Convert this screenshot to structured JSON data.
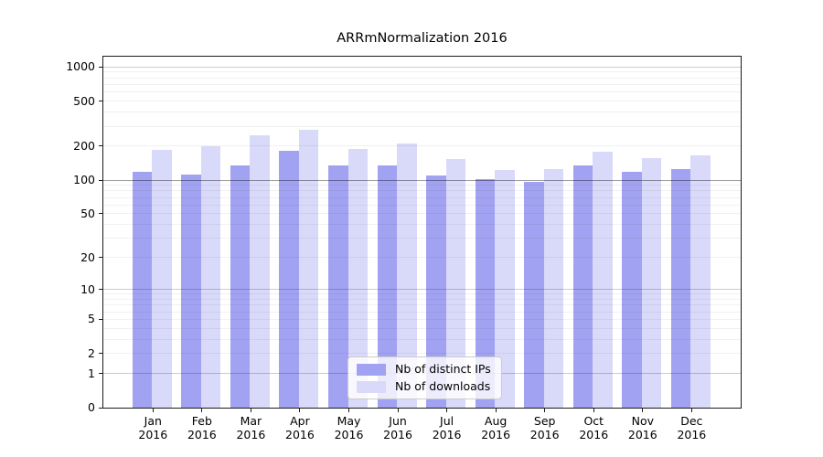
{
  "chart_data": {
    "type": "bar",
    "title": "ARRmNormalization 2016",
    "categories": [
      "Jan 2016",
      "Feb 2016",
      "Mar 2016",
      "Apr 2016",
      "May 2016",
      "Jun 2016",
      "Jul 2016",
      "Aug 2016",
      "Sep 2016",
      "Oct 2016",
      "Nov 2016",
      "Dec 2016"
    ],
    "series": [
      {
        "name": "Nb of distinct IPs",
        "color": "#a2a2f2",
        "values": [
          119,
          111,
          135,
          183,
          134,
          135,
          110,
          102,
          96,
          136,
          118,
          125
        ]
      },
      {
        "name": "Nb of downloads",
        "color": "#d9d9f9",
        "values": [
          186,
          201,
          250,
          280,
          190,
          211,
          153,
          122,
          126,
          177,
          156,
          167
        ]
      }
    ],
    "yscale": "log1p",
    "yticks": [
      1000,
      500,
      200,
      100,
      50,
      20,
      10,
      5,
      2,
      1,
      0
    ],
    "ymin": 0,
    "ymax": 1233,
    "emphasized_gridline": 100,
    "grid": "on",
    "grid_above_bars": true,
    "legend_position": "lower center"
  }
}
